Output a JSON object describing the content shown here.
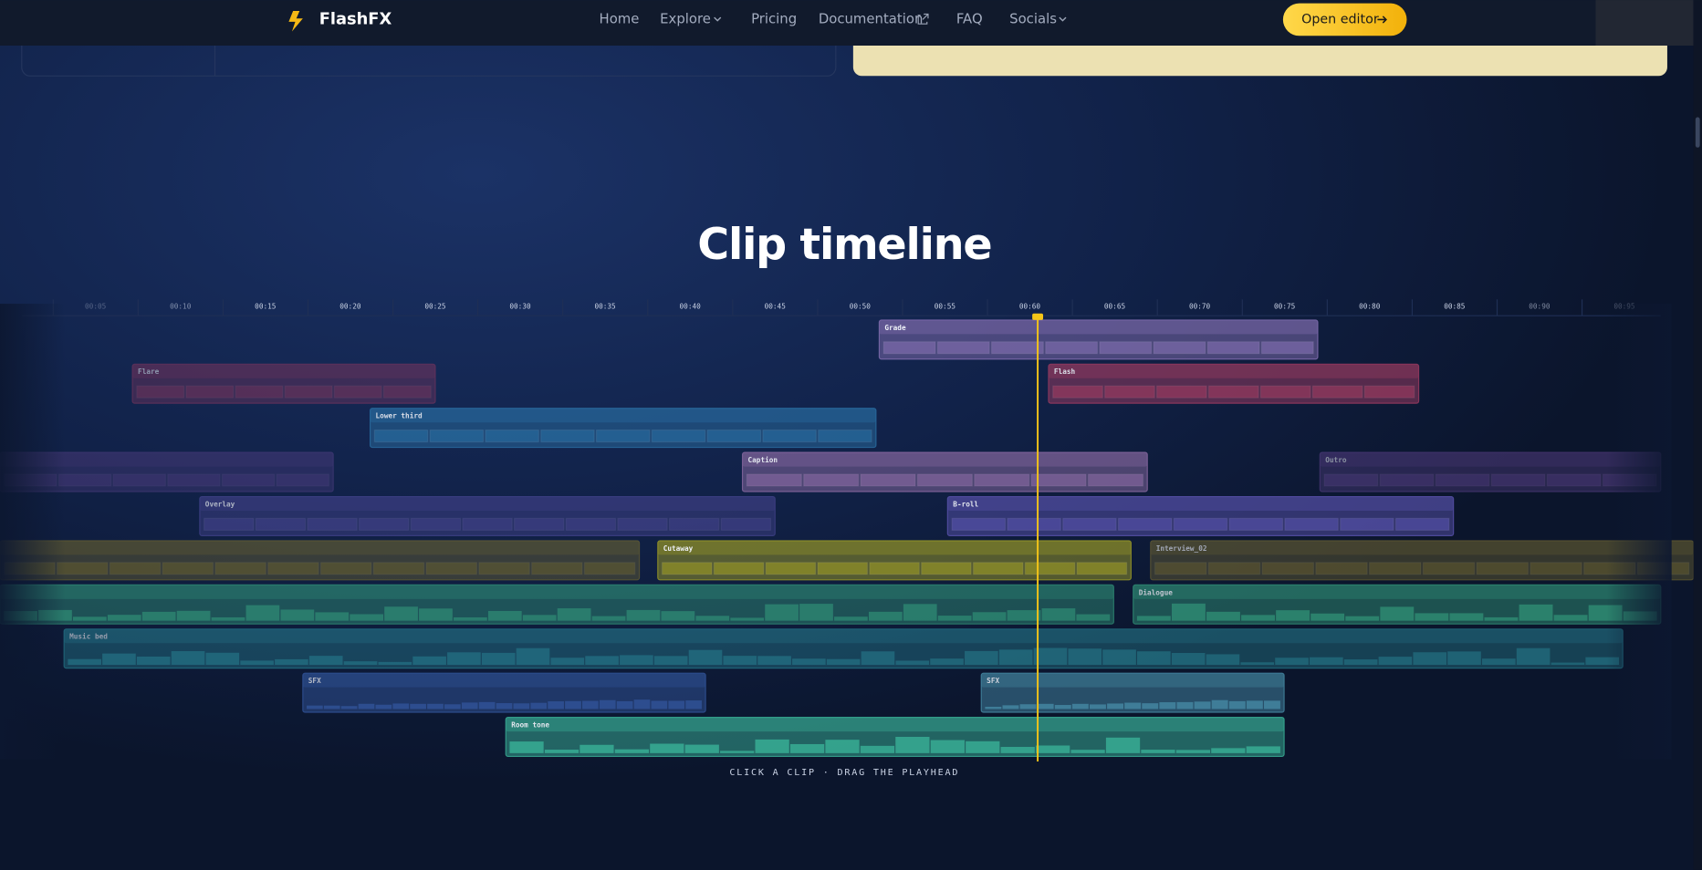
{
  "nav": {
    "brand": "FlashFX",
    "links": [
      "Home",
      "Explore",
      "Pricing",
      "Documentation",
      "FAQ",
      "Socials"
    ],
    "cta": "Open editor"
  },
  "section": {
    "title": "Clip timeline",
    "hint": "CLICK A CLIP · DRAG THE PLAYHEAD"
  },
  "timeline": {
    "ruler": [
      "00:05",
      "00:10",
      "00:15",
      "00:20",
      "00:25",
      "00:30",
      "00:35",
      "00:40",
      "00:45",
      "00:50",
      "00:55",
      "00:60",
      "00:65",
      "00:70",
      "00:75",
      "00:80",
      "00:85",
      "00:90",
      "00:95"
    ],
    "clips": [
      "Grade",
      "Flare",
      "Flash",
      "Lower third",
      "Caption",
      "Outro",
      "Overlay",
      "B-roll",
      "Cutaway",
      "Interview_02",
      "Dialogue",
      "Music bed",
      "SFX",
      "SFX",
      "Room tone"
    ]
  }
}
